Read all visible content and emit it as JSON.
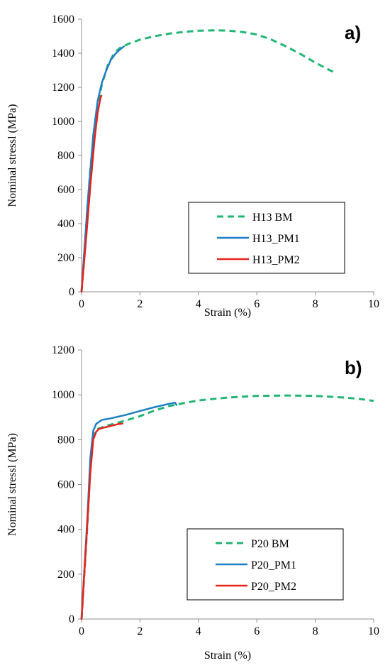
{
  "chart_data": [
    {
      "type": "line",
      "panel_label": "a)",
      "xlabel": "Strain (%)",
      "ylabel": "Nominal stressl (MPa)",
      "xlim": [
        0,
        10
      ],
      "ylim": [
        0,
        1600
      ],
      "xticks": [
        0,
        2,
        4,
        6,
        8,
        10
      ],
      "yticks": [
        0,
        200,
        400,
        600,
        800,
        1000,
        1200,
        1400,
        1600
      ],
      "grid": false,
      "legend_position": "bottom-right",
      "series": [
        {
          "name": "H13 BM",
          "color": "#22b573",
          "dash": "dashed",
          "points": [
            [
              0,
              0
            ],
            [
              0.3,
              720
            ],
            [
              0.5,
              1050
            ],
            [
              0.7,
              1220
            ],
            [
              0.9,
              1330
            ],
            [
              1.1,
              1395
            ],
            [
              1.3,
              1430
            ],
            [
              1.6,
              1455
            ],
            [
              2.0,
              1480
            ],
            [
              2.5,
              1500
            ],
            [
              3.0,
              1515
            ],
            [
              3.5,
              1525
            ],
            [
              4.0,
              1532
            ],
            [
              4.5,
              1534
            ],
            [
              5.0,
              1533
            ],
            [
              5.5,
              1525
            ],
            [
              6.0,
              1510
            ],
            [
              6.5,
              1480
            ],
            [
              7.0,
              1440
            ],
            [
              7.5,
              1395
            ],
            [
              8.0,
              1345
            ],
            [
              8.5,
              1300
            ],
            [
              8.7,
              1285
            ]
          ]
        },
        {
          "name": "H13_PM1",
          "color": "#1f7fc4",
          "dash": "solid",
          "points": [
            [
              0,
              0
            ],
            [
              0.2,
              500
            ],
            [
              0.4,
              920
            ],
            [
              0.55,
              1120
            ],
            [
              0.7,
              1230
            ],
            [
              0.85,
              1300
            ],
            [
              1.0,
              1360
            ],
            [
              1.15,
              1395
            ],
            [
              1.3,
              1420
            ],
            [
              1.45,
              1440
            ]
          ]
        },
        {
          "name": "H13_PM2",
          "color": "#e8231b",
          "dash": "solid",
          "points": [
            [
              0,
              0
            ],
            [
              0.15,
              300
            ],
            [
              0.3,
              620
            ],
            [
              0.45,
              900
            ],
            [
              0.55,
              1050
            ],
            [
              0.65,
              1140
            ],
            [
              0.68,
              1150
            ]
          ]
        }
      ]
    },
    {
      "type": "line",
      "panel_label": "b)",
      "xlabel": "Strain (%)",
      "ylabel": "Nominal stressl (MPa)",
      "xlim": [
        0,
        10
      ],
      "ylim": [
        0,
        1200
      ],
      "xticks": [
        0,
        2,
        4,
        6,
        8,
        10
      ],
      "yticks": [
        0,
        200,
        400,
        600,
        800,
        1000,
        1200
      ],
      "grid": false,
      "legend_position": "bottom-right",
      "series": [
        {
          "name": "P20 BM",
          "color": "#22b573",
          "dash": "dashed",
          "points": [
            [
              0,
              0
            ],
            [
              0.2,
              420
            ],
            [
              0.3,
              680
            ],
            [
              0.4,
              810
            ],
            [
              0.5,
              845
            ],
            [
              0.8,
              860
            ],
            [
              1.5,
              885
            ],
            [
              2.0,
              905
            ],
            [
              2.5,
              930
            ],
            [
              3.0,
              950
            ],
            [
              3.5,
              963
            ],
            [
              4.0,
              975
            ],
            [
              5.0,
              988
            ],
            [
              6.0,
              995
            ],
            [
              7.0,
              997
            ],
            [
              8.0,
              995
            ],
            [
              9.0,
              988
            ],
            [
              9.5,
              982
            ],
            [
              10.0,
              973
            ]
          ]
        },
        {
          "name": "P20_PM1",
          "color": "#1f7fc4",
          "dash": "solid",
          "points": [
            [
              0,
              0
            ],
            [
              0.2,
              450
            ],
            [
              0.3,
              720
            ],
            [
              0.4,
              840
            ],
            [
              0.5,
              870
            ],
            [
              0.7,
              888
            ],
            [
              1.0,
              895
            ],
            [
              1.5,
              910
            ],
            [
              2.0,
              928
            ],
            [
              2.5,
              945
            ],
            [
              3.0,
              960
            ],
            [
              3.2,
              965
            ],
            [
              3.25,
              955
            ]
          ]
        },
        {
          "name": "P20_PM2",
          "color": "#e8231b",
          "dash": "solid",
          "points": [
            [
              0,
              0
            ],
            [
              0.15,
              320
            ],
            [
              0.3,
              650
            ],
            [
              0.4,
              800
            ],
            [
              0.5,
              835
            ],
            [
              0.6,
              848
            ],
            [
              0.9,
              858
            ],
            [
              1.2,
              868
            ],
            [
              1.4,
              872
            ]
          ]
        }
      ]
    }
  ]
}
